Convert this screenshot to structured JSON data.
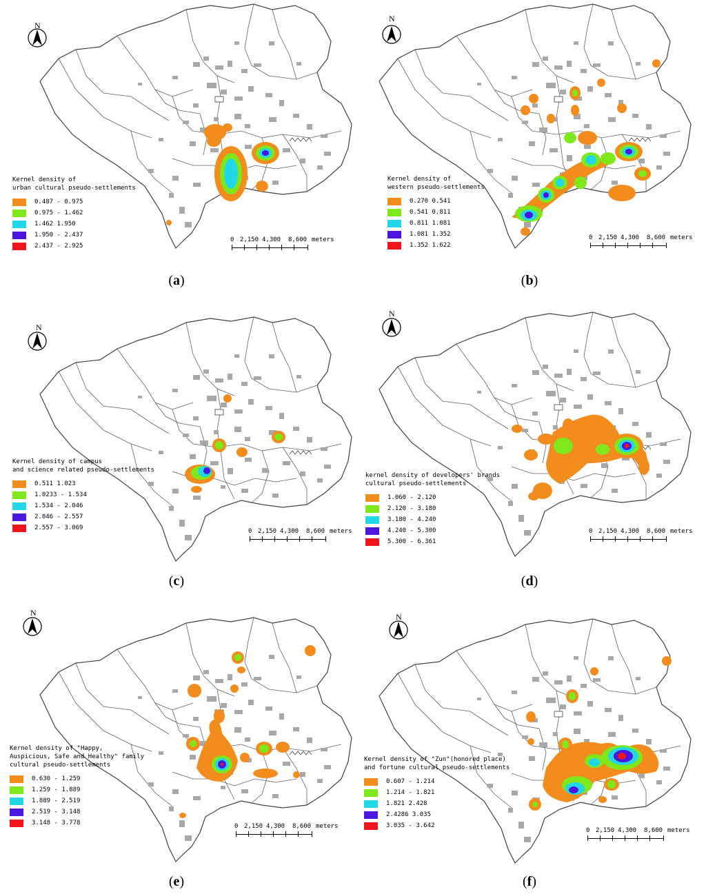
{
  "map_elements": {
    "north_label": "N",
    "scale_labels": [
      "0",
      "2,150",
      "4,300",
      "8,600",
      "meters"
    ]
  },
  "colors": {
    "c1": "#f28c1c",
    "c2": "#7fe81a",
    "c3": "#22d8e8",
    "c4": "#4a16e0",
    "c5": "#f0141c",
    "settlement": "#a8a8a8",
    "boundary": "#404040"
  },
  "panels": [
    {
      "caption": "a",
      "legend_title": [
        "Kernel density of",
        "urban cultural pseudo-settlements"
      ],
      "classes": [
        "0.487 - 0.975",
        "0.975 - 1.462",
        "1.462   1.950",
        "1.950 - 2.437",
        "2.437 - 2.925"
      ]
    },
    {
      "caption": "b",
      "legend_title": [
        "Kernel density of",
        "western pseudo-settlements"
      ],
      "classes": [
        "0.270   0.541",
        "0.541   0.811",
        "0.811   1.081",
        "1.081   1.352",
        "1.352   1.622"
      ]
    },
    {
      "caption": "c",
      "legend_title": [
        "Kernel density of campus",
        "and science related pseudo-settlements"
      ],
      "classes": [
        "0.511   1.023",
        "1.0233 - 1.534",
        "1.534  - 2.046",
        "2.046  - 2.557",
        "2.557  - 3.069"
      ]
    },
    {
      "caption": "d",
      "legend_title": [
        "kernel density of developers' brands",
        "cultural pseudo-settlements"
      ],
      "classes": [
        "1.060 - 2.120",
        "2.120 - 3.180",
        "3.180 - 4.240",
        "4.240 - 5.300",
        "5.300 - 6.361"
      ]
    },
    {
      "caption": "e",
      "legend_title": [
        "Kernel density of \"Happy,",
        "Auspicious, Safe and Healthy\" family",
        "cultural pseudo-settlements"
      ],
      "classes": [
        "0.630 - 1.259",
        "1.259 - 1.889",
        "1.889 - 2.519",
        "2.519 - 3.148",
        "3.148 - 3.778"
      ]
    },
    {
      "caption": "f",
      "legend_title": [
        "Kernel density of \"Zun\"(honored place)",
        "and fortune cultural pseudo-settlements"
      ],
      "classes": [
        "0.607 - 1.214",
        "1.214 - 1.821",
        "1.821   2.428",
        "2.4286   3.035",
        "3.035 - 3.642"
      ]
    }
  ]
}
